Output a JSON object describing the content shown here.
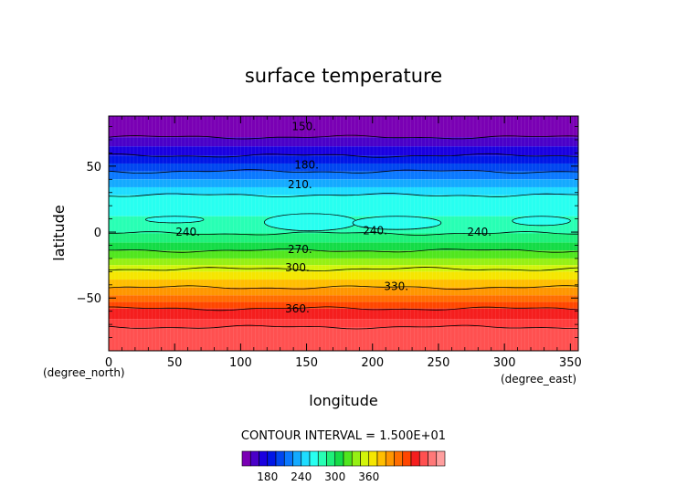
{
  "chart_data": {
    "type": "heatmap",
    "title": "surface temperature",
    "xlabel": "longitude",
    "ylabel": "latitude",
    "x_unit": "(degree_east)",
    "y_unit": "(degree_north)",
    "xlim": [
      0,
      356
    ],
    "ylim": [
      -90,
      88
    ],
    "x_ticks": [
      0,
      50,
      100,
      150,
      200,
      250,
      300,
      350
    ],
    "y_ticks": [
      -50,
      0,
      50
    ],
    "contour_interval_text": "CONTOUR INTERVAL = 1.500E+01",
    "colorbar": {
      "colors": [
        "#7a00b4",
        "#4a00c8",
        "#1a00e0",
        "#0016e6",
        "#0046f0",
        "#0a78ff",
        "#14aaff",
        "#1edcff",
        "#28fff0",
        "#28ffb4",
        "#1ef07a",
        "#14dc46",
        "#50e61e",
        "#96f014",
        "#d2f50a",
        "#f5e600",
        "#ffbe00",
        "#ff9600",
        "#ff6e00",
        "#ff4600",
        "#f51e1e",
        "#ff5050",
        "#ff7878",
        "#ff9e9e"
      ],
      "ticks": [
        180,
        240,
        300,
        360
      ],
      "tick_labels": [
        "180",
        "240",
        "300",
        "360"
      ]
    },
    "bands": [
      {
        "lat_top": 88,
        "lat_bottom": 72,
        "color": "#7a00b4"
      },
      {
        "lat_top": 72,
        "lat_bottom": 65,
        "color": "#4a00c8"
      },
      {
        "lat_top": 65,
        "lat_bottom": 58,
        "color": "#1a00e0"
      },
      {
        "lat_top": 58,
        "lat_bottom": 52,
        "color": "#0016e6"
      },
      {
        "lat_top": 52,
        "lat_bottom": 46,
        "color": "#0046f0"
      },
      {
        "lat_top": 46,
        "lat_bottom": 40,
        "color": "#0a78ff"
      },
      {
        "lat_top": 40,
        "lat_bottom": 34,
        "color": "#14aaff"
      },
      {
        "lat_top": 34,
        "lat_bottom": 28,
        "color": "#1edcff"
      },
      {
        "lat_top": 28,
        "lat_bottom": 12,
        "color": "#28fff0"
      },
      {
        "lat_top": 12,
        "lat_bottom": -1,
        "color": "#28ffb4"
      },
      {
        "lat_top": -1,
        "lat_bottom": -8,
        "color": "#1ef07a"
      },
      {
        "lat_top": -8,
        "lat_bottom": -14,
        "color": "#14dc46"
      },
      {
        "lat_top": -14,
        "lat_bottom": -20,
        "color": "#50e61e"
      },
      {
        "lat_top": -20,
        "lat_bottom": -25,
        "color": "#96f014"
      },
      {
        "lat_top": -25,
        "lat_bottom": -30,
        "color": "#d2f50a"
      },
      {
        "lat_top": -30,
        "lat_bottom": -36,
        "color": "#f5e600"
      },
      {
        "lat_top": -36,
        "lat_bottom": -42,
        "color": "#ffbe00"
      },
      {
        "lat_top": -42,
        "lat_bottom": -48,
        "color": "#ff9600"
      },
      {
        "lat_top": -48,
        "lat_bottom": -53,
        "color": "#ff6e00"
      },
      {
        "lat_top": -53,
        "lat_bottom": -58,
        "color": "#ff4600"
      },
      {
        "lat_top": -58,
        "lat_bottom": -66,
        "color": "#f51e1e"
      },
      {
        "lat_top": -66,
        "lat_bottom": -72,
        "color": "#ff3c3c"
      },
      {
        "lat_top": -72,
        "lat_bottom": -90,
        "color": "#ff5050"
      }
    ],
    "contours": [
      {
        "lat": 72,
        "label": "150."
      },
      {
        "lat": 58,
        "label": "180."
      },
      {
        "lat": 46,
        "label": "210."
      },
      {
        "lat": 28,
        "label": ""
      },
      {
        "lat": -1,
        "label": "240."
      },
      {
        "lat": -14,
        "label": "270."
      },
      {
        "lat": -28,
        "label": "300."
      },
      {
        "lat": -42,
        "label": "330."
      },
      {
        "lat": -58,
        "label": "360."
      },
      {
        "lat": -72,
        "label": ""
      }
    ],
    "contour_labels": [
      {
        "lon": 148,
        "lat": 80,
        "text": "150."
      },
      {
        "lon": 150,
        "lat": 51,
        "text": "180."
      },
      {
        "lon": 145,
        "lat": 36,
        "text": "210."
      },
      {
        "lon": 60,
        "lat": 0,
        "text": "240."
      },
      {
        "lon": 202,
        "lat": 1,
        "text": "240."
      },
      {
        "lon": 281,
        "lat": 0,
        "text": "240."
      },
      {
        "lon": 145,
        "lat": -13,
        "text": "270."
      },
      {
        "lon": 143,
        "lat": -27,
        "text": "300."
      },
      {
        "lon": 218,
        "lat": -41,
        "text": "330."
      },
      {
        "lon": 143,
        "lat": -58,
        "text": "360."
      }
    ],
    "islands_240": [
      {
        "lon_start": 28,
        "lon_end": 72,
        "lat_top": 12,
        "lat_bottom": 7
      },
      {
        "lon_start": 118,
        "lon_end": 188,
        "lat_top": 14,
        "lat_bottom": 1
      },
      {
        "lon_start": 185,
        "lon_end": 252,
        "lat_top": 12,
        "lat_bottom": 2
      },
      {
        "lon_start": 306,
        "lon_end": 350,
        "lat_top": 12,
        "lat_bottom": 5
      }
    ],
    "grid": false
  }
}
